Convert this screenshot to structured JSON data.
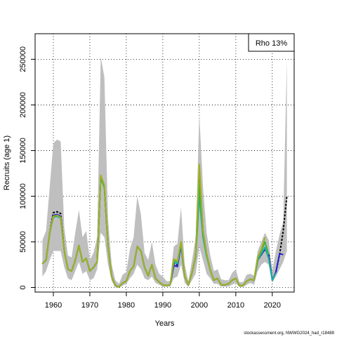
{
  "chart_data": {
    "type": "line",
    "title": "",
    "xlabel": "Years",
    "ylabel": "Recruits (age 1)",
    "xlim": [
      1955,
      2026
    ],
    "ylim": [
      -5000,
      278000
    ],
    "xticks": [
      1960,
      1970,
      1980,
      1990,
      2000,
      2010,
      2020
    ],
    "yticks": [
      0,
      50000,
      100000,
      150000,
      200000,
      250000
    ],
    "xtick_labels": [
      "1960",
      "1970",
      "1980",
      "1990",
      "2000",
      "2010",
      "2020"
    ],
    "ytick_labels": [
      "0",
      "50000",
      "100000",
      "150000",
      "200000",
      "250000"
    ],
    "grid": true,
    "legend": {
      "text": "Rho 13%",
      "position": "top-right"
    },
    "band": {
      "x": [
        1957,
        1958,
        1959,
        1960,
        1961,
        1962,
        1963,
        1964,
        1965,
        1966,
        1967,
        1968,
        1969,
        1970,
        1971,
        1972,
        1973,
        1974,
        1975,
        1976,
        1977,
        1978,
        1979,
        1980,
        1981,
        1982,
        1983,
        1984,
        1985,
        1986,
        1987,
        1988,
        1989,
        1990,
        1991,
        1992,
        1993,
        1994,
        1995,
        1996,
        1997,
        1998,
        1999,
        2000,
        2001,
        2002,
        2003,
        2004,
        2005,
        2006,
        2007,
        2008,
        2009,
        2010,
        2011,
        2012,
        2013,
        2014,
        2015,
        2016,
        2017,
        2018,
        2019,
        2020,
        2021,
        2022,
        2023,
        2024
      ],
      "upper": [
        52000,
        62000,
        110000,
        158000,
        162000,
        160000,
        65000,
        35000,
        33000,
        60000,
        85000,
        55000,
        62000,
        30000,
        38000,
        55000,
        253000,
        230000,
        75000,
        25000,
        8000,
        4000,
        14000,
        17000,
        42000,
        55000,
        100000,
        80000,
        38000,
        30000,
        50000,
        25000,
        15000,
        12000,
        7000,
        7000,
        45000,
        48000,
        88000,
        25000,
        7000,
        30000,
        55000,
        190000,
        110000,
        60000,
        35000,
        18000,
        20000,
        9000,
        8000,
        8000,
        16000,
        20000,
        6000,
        6000,
        14000,
        15000,
        13000,
        40000,
        50000,
        60000,
        52000,
        18000,
        40000,
        58000,
        72000,
        250000
      ],
      "lower": [
        12000,
        18000,
        30000,
        40000,
        40000,
        40000,
        22000,
        10000,
        8000,
        18000,
        28000,
        15000,
        18000,
        8000,
        10000,
        20000,
        60000,
        55000,
        25000,
        7000,
        0,
        0,
        2000,
        4000,
        10000,
        15000,
        25000,
        20000,
        10000,
        8000,
        12000,
        5000,
        3000,
        1000,
        1000,
        1000,
        10000,
        12000,
        25000,
        5000,
        500,
        8000,
        15000,
        45000,
        30000,
        15000,
        10000,
        4000,
        4000,
        1000,
        1000,
        1000,
        3000,
        5000,
        500,
        500,
        3000,
        5000,
        3000,
        18000,
        25000,
        28000,
        25000,
        5000,
        12000,
        20000,
        28000,
        40000
      ]
    },
    "x": [
      1957,
      1958,
      1959,
      1960,
      1961,
      1962,
      1963,
      1964,
      1965,
      1966,
      1967,
      1968,
      1969,
      1970,
      1971,
      1972,
      1973,
      1974,
      1975,
      1976,
      1977,
      1978,
      1979,
      1980,
      1981,
      1982,
      1983,
      1984,
      1985,
      1986,
      1987,
      1988,
      1989,
      1990,
      1991,
      1992,
      1993,
      1994,
      1995,
      1996,
      1997,
      1998,
      1999,
      2000,
      2001,
      2002,
      2003,
      2004,
      2005,
      2006,
      2007,
      2008,
      2009,
      2010,
      2011,
      2012,
      2013,
      2014,
      2015,
      2016,
      2017,
      2018,
      2019,
      2020,
      2021,
      2022,
      2023,
      2024
    ],
    "series": [
      {
        "color": "#000000",
        "dashed": true,
        "values": [
          26000,
          30000,
          60000,
          82000,
          83000,
          81000,
          40000,
          20000,
          18000,
          30000,
          46000,
          28000,
          32000,
          18000,
          22000,
          28000,
          122000,
          110000,
          45000,
          12000,
          2000,
          500,
          5000,
          7000,
          18000,
          23000,
          45000,
          40000,
          22000,
          13000,
          25000,
          10000,
          6000,
          3000,
          2000,
          3000,
          26000,
          25000,
          48000,
          12000,
          3000,
          16000,
          34000,
          125000,
          62000,
          36000,
          19000,
          8000,
          10000,
          3000,
          3000,
          4000,
          8000,
          10000,
          2000,
          2000,
          7000,
          9000,
          8000,
          30000,
          36000,
          42000,
          37000,
          8000,
          17000,
          36000,
          62000,
          100000
        ]
      },
      {
        "color": "#2020d0",
        "values": [
          26000,
          30000,
          60000,
          79000,
          80000,
          78000,
          40000,
          20000,
          18000,
          30000,
          46000,
          28000,
          32000,
          18000,
          22000,
          28000,
          122000,
          110000,
          45000,
          12000,
          2000,
          500,
          5000,
          7000,
          18000,
          23000,
          45000,
          40000,
          22000,
          13000,
          25000,
          10000,
          6000,
          3000,
          2000,
          3000,
          24000,
          23000,
          46000,
          12000,
          3000,
          16000,
          34000,
          125000,
          62000,
          36000,
          19000,
          8000,
          10000,
          3000,
          3000,
          4000,
          8000,
          10000,
          2000,
          2000,
          7000,
          9000,
          8000,
          30000,
          36000,
          42000,
          35000,
          8000,
          17000,
          37000,
          36000,
          null
        ]
      },
      {
        "color": "#1ab0a0",
        "values": [
          26000,
          30000,
          60000,
          77000,
          78000,
          76000,
          40000,
          20000,
          18000,
          30000,
          46000,
          28000,
          32000,
          18000,
          22000,
          28000,
          121000,
          109000,
          45000,
          12000,
          2000,
          500,
          5000,
          7000,
          18000,
          23000,
          45000,
          40000,
          22000,
          13000,
          25000,
          10000,
          6000,
          3000,
          2000,
          3000,
          28000,
          26000,
          48000,
          12000,
          3000,
          16000,
          34000,
          100000,
          55000,
          34000,
          19000,
          8000,
          10000,
          3000,
          3000,
          4000,
          8000,
          10000,
          2000,
          2000,
          7000,
          9000,
          8000,
          30000,
          37000,
          44000,
          32000,
          8000,
          16000,
          null,
          null,
          null
        ]
      },
      {
        "color": "#40b040",
        "values": [
          26000,
          30000,
          60000,
          78000,
          79000,
          77000,
          40000,
          20000,
          18000,
          30000,
          46000,
          28000,
          32000,
          18000,
          22000,
          28000,
          122000,
          110000,
          45000,
          12000,
          2000,
          500,
          5000,
          7000,
          18000,
          23000,
          45000,
          40000,
          22000,
          13000,
          25000,
          10000,
          6000,
          3000,
          2000,
          3000,
          30000,
          28000,
          50000,
          12000,
          3000,
          16000,
          34000,
          115000,
          60000,
          36000,
          19000,
          8000,
          10000,
          3000,
          3000,
          4000,
          8000,
          10000,
          2000,
          2000,
          7000,
          9000,
          8000,
          32000,
          40000,
          50000,
          36000,
          null,
          null,
          null,
          null,
          null
        ]
      },
      {
        "color": "#a0b020",
        "values": [
          26000,
          30000,
          60000,
          78000,
          79000,
          77000,
          40000,
          20000,
          18000,
          30000,
          46000,
          28000,
          32000,
          18000,
          22000,
          28000,
          123000,
          112000,
          45000,
          12000,
          2000,
          500,
          5000,
          7000,
          18000,
          23000,
          45000,
          40000,
          22000,
          13000,
          25000,
          10000,
          6000,
          3000,
          2000,
          3000,
          31000,
          29000,
          50000,
          12000,
          3000,
          16000,
          34000,
          135000,
          63000,
          37000,
          19000,
          8000,
          10000,
          3000,
          3000,
          4000,
          8000,
          10000,
          2000,
          2000,
          7000,
          9000,
          8000,
          33000,
          42000,
          55000,
          null,
          null,
          null,
          null,
          null,
          null
        ]
      }
    ]
  },
  "footer": "stockassessment.org, NWWG2024_had_r18489"
}
